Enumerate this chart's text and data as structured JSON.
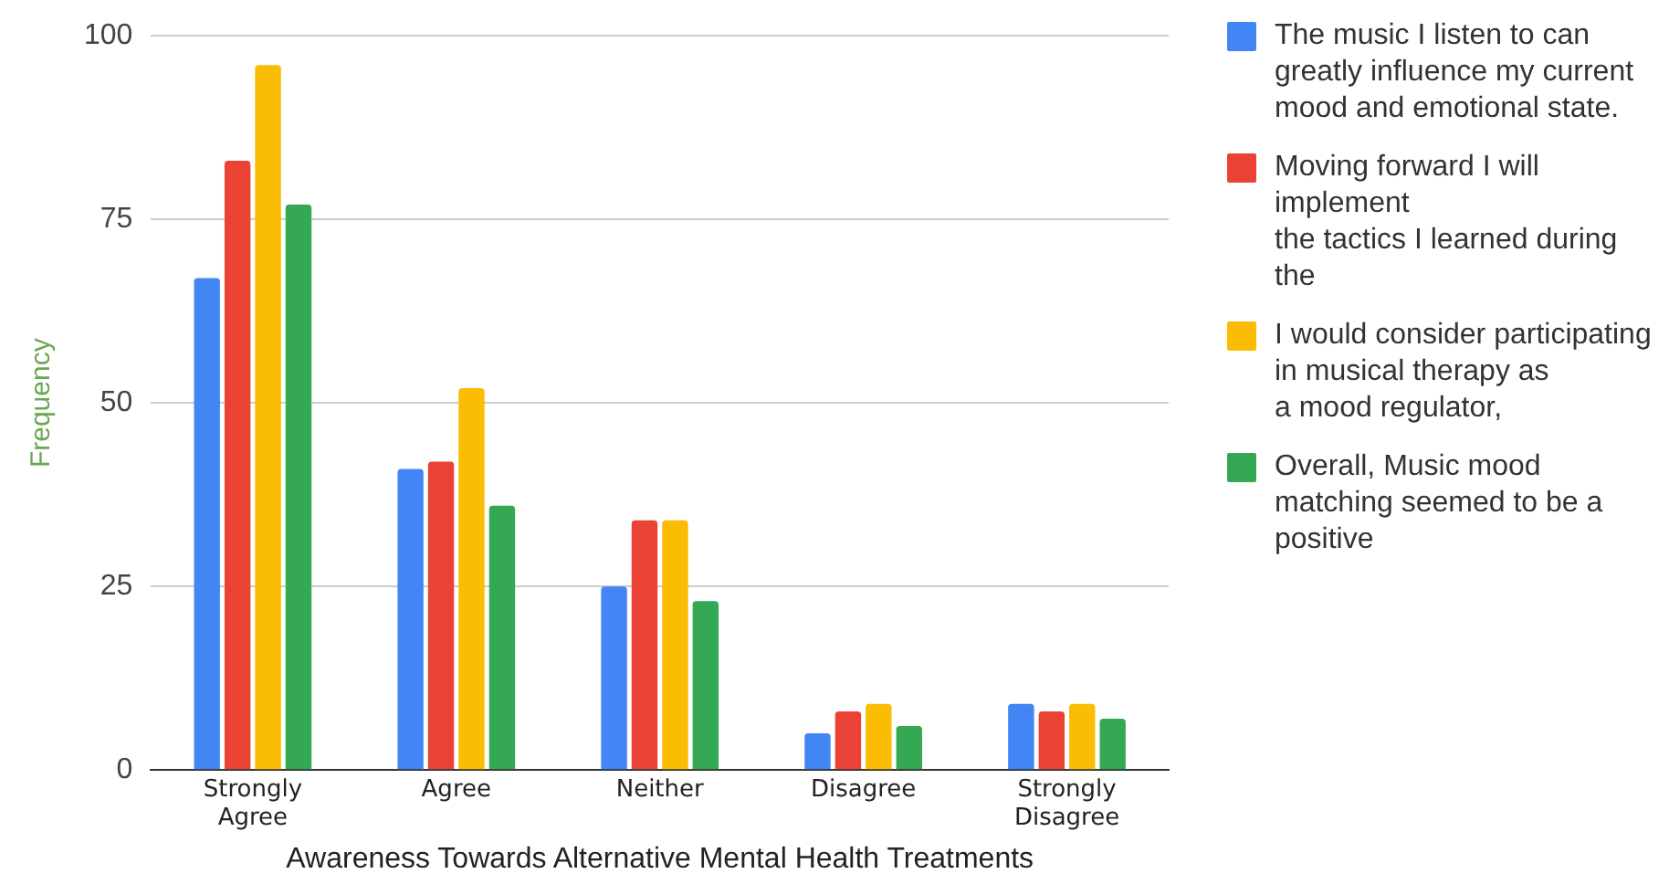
{
  "chart_data": {
    "type": "bar",
    "xlabel": "Awareness Towards Alternative Mental Health Treatments",
    "ylabel": "Frequency",
    "categories": [
      "Strongly Agree",
      "Agree",
      "Neither",
      "Disagree",
      "Strongly Disagree"
    ],
    "series": [
      {
        "name": "The music I listen to can greatly influence my current mood and emotional state.",
        "color": "#4285f4",
        "values": [
          67,
          41,
          25,
          5,
          9
        ]
      },
      {
        "name": "Moving forward I will implement\n the tactics I learned during the",
        "color": "#ea4335",
        "values": [
          83,
          42,
          34,
          8,
          8
        ]
      },
      {
        "name": "I would consider participating in musical therapy as\n a mood regulator,",
        "color": "#fbbc04",
        "values": [
          96,
          52,
          34,
          9,
          9
        ]
      },
      {
        "name": "Overall, Music mood matching seemed to be a positive",
        "color": "#34a853",
        "values": [
          77,
          36,
          23,
          6,
          7
        ]
      }
    ],
    "ylim": [
      0,
      100
    ],
    "yticks": [
      0,
      25,
      50,
      75,
      100
    ],
    "grid": "y",
    "legend": "right"
  }
}
